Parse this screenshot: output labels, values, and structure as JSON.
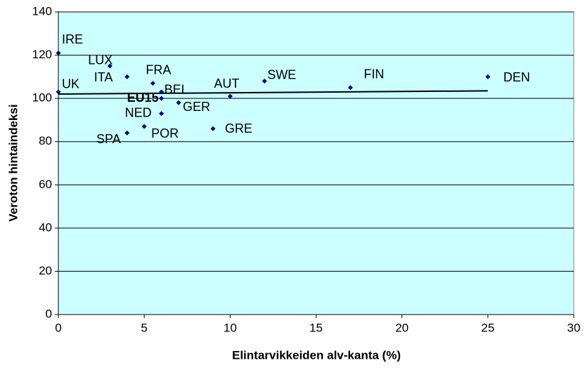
{
  "chart_data": {
    "type": "scatter",
    "x_label": "Elintarvikkeiden alv-kanta (%)",
    "y_label": "Veroton hintaindeksi",
    "series": [
      {
        "color": "#000080",
        "labels": [
          "IRE",
          "UK",
          "LUX",
          "ITA",
          "FRA",
          "EU15",
          "BEL",
          "NED",
          "GER",
          "SPA",
          "POR",
          "GRE",
          "AUT",
          "SWE",
          "FIN",
          "DEN"
        ],
        "x": [
          0,
          0,
          3,
          4,
          5.5,
          6,
          6,
          6,
          7,
          4,
          5,
          9,
          10,
          12,
          17,
          25
        ],
        "values": [
          121,
          103,
          115,
          110,
          107,
          100,
          103,
          93,
          98,
          84,
          87,
          86,
          101,
          108,
          105,
          110
        ]
      }
    ],
    "trendline": {
      "color": "#000000",
      "x": [
        0,
        25
      ],
      "values": [
        102,
        103.5
      ]
    },
    "xlim": [
      0,
      30
    ],
    "xticks": [
      0,
      5,
      10,
      15,
      20,
      25,
      30
    ],
    "ylim": [
      0,
      140
    ],
    "yticks": [
      0,
      20,
      40,
      60,
      80,
      100,
      120,
      140
    ],
    "grid": true,
    "background": "#ccffff"
  }
}
